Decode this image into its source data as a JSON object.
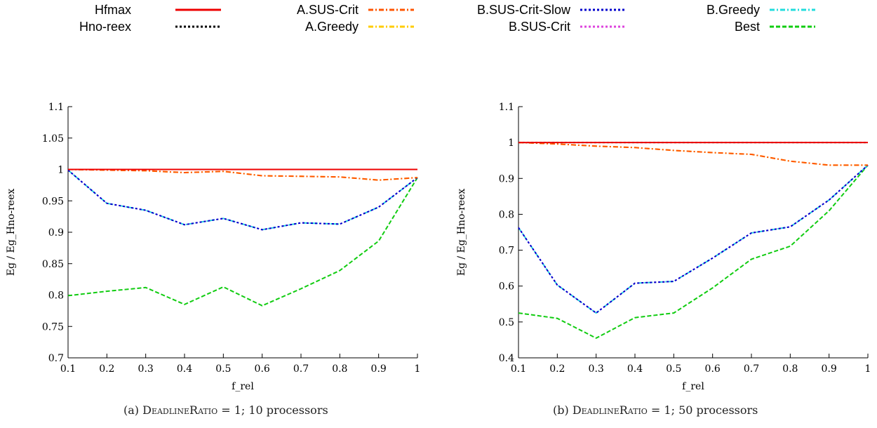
{
  "legend": {
    "items": [
      {
        "label": "Hfmax",
        "color": "#ee0000",
        "dash": "solid"
      },
      {
        "label": "Hno-reex",
        "color": "#000000",
        "dash": "dotted"
      },
      {
        "label": "A.SUS-Crit",
        "color": "#ff5500",
        "dash": "dashdot"
      },
      {
        "label": "A.Greedy",
        "color": "#ffcc00",
        "dash": "dashdot"
      },
      {
        "label": "B.SUS-Crit-Slow",
        "color": "#0000cc",
        "dash": "dotted"
      },
      {
        "label": "B.SUS-Crit",
        "color": "#dd44dd",
        "dash": "dotted"
      },
      {
        "label": "B.Greedy",
        "color": "#22dddd",
        "dash": "dashdot"
      },
      {
        "label": "Best",
        "color": "#11cc11",
        "dash": "dashed"
      }
    ]
  },
  "captions": {
    "a": {
      "prefix": "(a) ",
      "term": "DeadlineRatio",
      "rest": " = 1;  10 processors"
    },
    "b": {
      "prefix": "(b) ",
      "term": "DeadlineRatio",
      "rest": " = 1;  50 processors"
    }
  },
  "chart_data": [
    {
      "type": "line",
      "xlabel": "f_rel",
      "ylabel": "Eg / Eg_Hno-reex",
      "xlim": [
        0.1,
        1
      ],
      "ylim": [
        0.7,
        1.1
      ],
      "xticks": [
        "0.1",
        "0.2",
        "0.3",
        "0.4",
        "0.5",
        "0.6",
        "0.7",
        "0.8",
        "0.9",
        "1"
      ],
      "yticks": [
        "0.7",
        "0.75",
        "0.8",
        "0.85",
        "0.9",
        "0.95",
        "1",
        "1.05",
        "1.1"
      ],
      "x": [
        0.1,
        0.2,
        0.3,
        0.4,
        0.5,
        0.6,
        0.7,
        0.8,
        0.9,
        1.0
      ],
      "series": [
        {
          "name": "Hfmax",
          "values": [
            1,
            1,
            1,
            1,
            1,
            1,
            1,
            1,
            1,
            1
          ]
        },
        {
          "name": "Hno-reex",
          "values": [
            1,
            1,
            1,
            1,
            1,
            1,
            1,
            1,
            1,
            1
          ]
        },
        {
          "name": "A.SUS-Crit",
          "values": [
            1.0,
            0.999,
            0.998,
            0.995,
            0.997,
            0.99,
            0.989,
            0.988,
            0.983,
            0.987
          ]
        },
        {
          "name": "A.Greedy",
          "values": [
            1.0,
            0.999,
            0.998,
            0.995,
            0.997,
            0.99,
            0.989,
            0.988,
            0.983,
            0.987
          ]
        },
        {
          "name": "B.SUS-Crit-Slow",
          "values": [
            0.999,
            0.946,
            0.935,
            0.912,
            0.922,
            0.904,
            0.915,
            0.913,
            0.94,
            0.987
          ]
        },
        {
          "name": "B.SUS-Crit",
          "values": [
            0.999,
            0.946,
            0.935,
            0.912,
            0.922,
            0.904,
            0.915,
            0.913,
            0.94,
            0.987
          ]
        },
        {
          "name": "B.Greedy",
          "values": [
            0.999,
            0.946,
            0.935,
            0.912,
            0.922,
            0.904,
            0.915,
            0.913,
            0.94,
            0.987
          ]
        },
        {
          "name": "Best",
          "values": [
            0.799,
            0.806,
            0.812,
            0.785,
            0.813,
            0.783,
            0.81,
            0.839,
            0.886,
            0.987
          ]
        }
      ]
    },
    {
      "type": "line",
      "xlabel": "f_rel",
      "ylabel": "Eg / Eg_Hno-reex",
      "xlim": [
        0.1,
        1
      ],
      "ylim": [
        0.4,
        1.1
      ],
      "xticks": [
        "0.1",
        "0.2",
        "0.3",
        "0.4",
        "0.5",
        "0.6",
        "0.7",
        "0.8",
        "0.9",
        "1"
      ],
      "yticks": [
        "0.4",
        "0.5",
        "0.6",
        "0.7",
        "0.8",
        "0.9",
        "1",
        "1.1"
      ],
      "x": [
        0.1,
        0.2,
        0.3,
        0.4,
        0.5,
        0.6,
        0.7,
        0.8,
        0.9,
        1.0
      ],
      "series": [
        {
          "name": "Hfmax",
          "values": [
            1,
            1,
            1,
            1,
            1,
            1,
            1,
            1,
            1,
            1
          ]
        },
        {
          "name": "Hno-reex",
          "values": [
            1,
            1,
            1,
            1,
            1,
            1,
            1,
            1,
            1,
            1
          ]
        },
        {
          "name": "A.SUS-Crit",
          "values": [
            1.0,
            0.996,
            0.99,
            0.986,
            0.978,
            0.972,
            0.967,
            0.948,
            0.937,
            0.937
          ]
        },
        {
          "name": "A.Greedy",
          "values": [
            1.0,
            0.996,
            0.99,
            0.986,
            0.978,
            0.972,
            0.967,
            0.948,
            0.937,
            0.937
          ]
        },
        {
          "name": "B.SUS-Crit-Slow",
          "values": [
            0.763,
            0.603,
            0.525,
            0.608,
            0.613,
            0.678,
            0.748,
            0.765,
            0.84,
            0.937
          ]
        },
        {
          "name": "B.SUS-Crit",
          "values": [
            0.763,
            0.603,
            0.525,
            0.608,
            0.613,
            0.678,
            0.748,
            0.765,
            0.84,
            0.937
          ]
        },
        {
          "name": "B.Greedy",
          "values": [
            0.763,
            0.603,
            0.525,
            0.608,
            0.613,
            0.678,
            0.748,
            0.765,
            0.84,
            0.937
          ]
        },
        {
          "name": "Best",
          "values": [
            0.525,
            0.51,
            0.455,
            0.512,
            0.525,
            0.595,
            0.675,
            0.711,
            0.81,
            0.937
          ]
        }
      ]
    }
  ]
}
